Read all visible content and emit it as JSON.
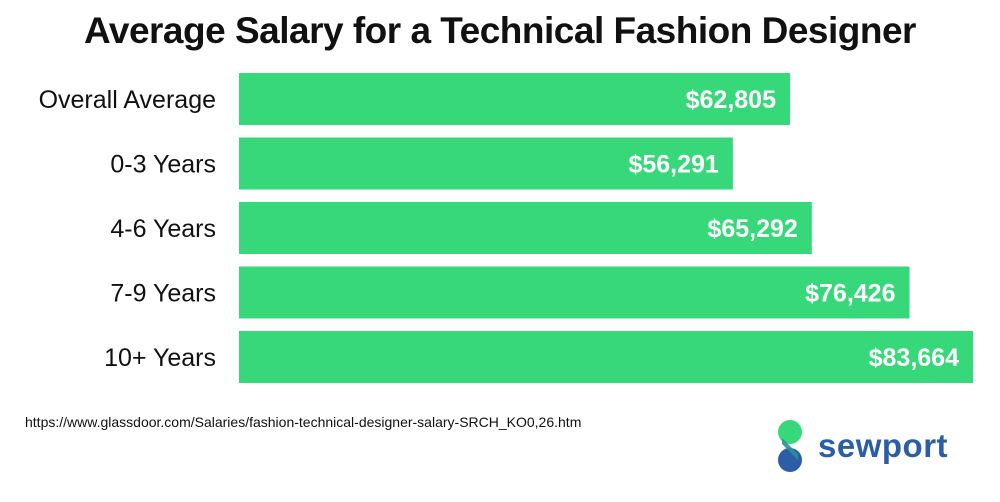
{
  "chart_data": {
    "type": "bar",
    "orientation": "horizontal",
    "title": "Average Salary for a Technical Fashion Designer",
    "categories": [
      "Overall Average",
      "0-3 Years",
      "4-6 Years",
      "7-9 Years",
      "10+ Years"
    ],
    "values": [
      62805,
      56291,
      65292,
      76426,
      83664
    ],
    "value_labels": [
      "$62,805",
      "$56,291",
      "$65,292",
      "$76,426",
      "$83,664"
    ],
    "bar_color": "#37d87a",
    "value_label_color": "#ffffff",
    "grid": false,
    "legend": "none"
  },
  "source": {
    "text": "https://www.glassdoor.com/Salaries/fashion-technical-designer-salary-SRCH_KO0,26.htm"
  },
  "brand": {
    "name": "sewport",
    "mark_icon": "sewport-logo-icon",
    "colors": [
      "#2b5ea7",
      "#37d87a"
    ]
  }
}
